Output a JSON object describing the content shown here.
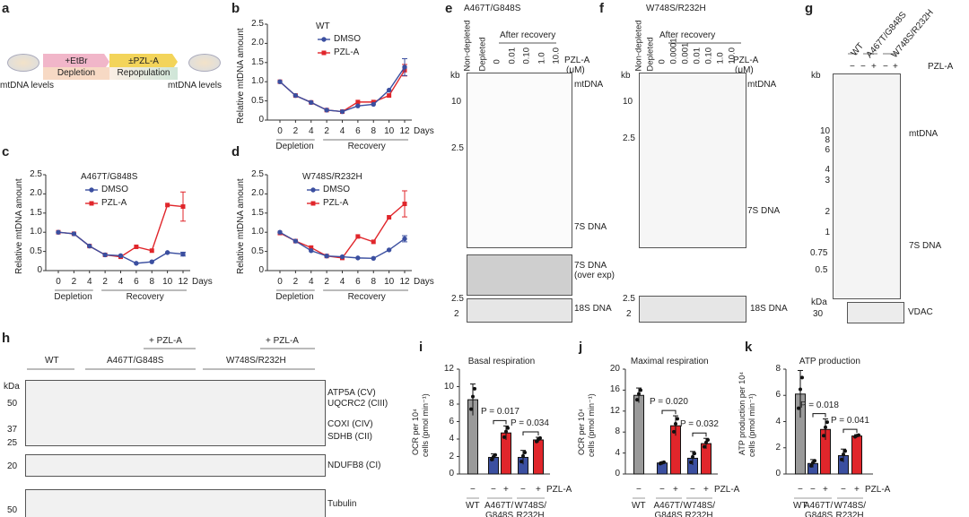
{
  "panel_letters": {
    "a": "a",
    "b": "b",
    "c": "c",
    "d": "d",
    "e": "e",
    "f": "f",
    "g": "g",
    "h": "h",
    "i": "i",
    "j": "j",
    "k": "k"
  },
  "schematic": {
    "etbr": "+EtBr",
    "pzla": "±PZL-A",
    "depletion": "Depletion",
    "repopulation": "Repopulation",
    "left_label": "mtDNA levels",
    "right_label": "mtDNA levels",
    "colors": {
      "etbr": "#f1b6c9",
      "pzla": "#f3d45a",
      "depletion": "#f7d9c4",
      "repopulation": "#cfe6d8"
    }
  },
  "common": {
    "ylabel": "Relative mtDNA amount",
    "days": "Days",
    "depletion": "Depletion",
    "recovery": "Recovery",
    "dmso": "DMSO",
    "pzla": "PZL-A"
  },
  "chart_data": [
    {
      "type": "line",
      "title": "WT",
      "ylabel": "Relative mtDNA amount",
      "xlabel": "Days",
      "x_tick_labels": [
        "0",
        "2",
        "4",
        "2",
        "4",
        "6",
        "8",
        "10",
        "12"
      ],
      "y_ticks": [
        "0",
        "0.5",
        "1.0",
        "1.5",
        "2.0",
        "2.5"
      ],
      "ylim": [
        0,
        2.5
      ],
      "series": [
        {
          "name": "DMSO",
          "color": "#3b4fa0",
          "values": [
            1.0,
            0.64,
            0.46,
            0.26,
            0.22,
            0.37,
            0.41,
            0.78,
            1.38
          ],
          "err_last": 0.22
        },
        {
          "name": "PZL-A",
          "color": "#e0262b",
          "values": [
            1.0,
            0.64,
            0.46,
            0.26,
            0.22,
            0.47,
            0.47,
            0.64,
            1.3
          ],
          "err_last": 0.15
        }
      ]
    },
    {
      "type": "line",
      "title": "A467T/G848S",
      "ylabel": "Relative mtDNA amount",
      "xlabel": "Days",
      "x_tick_labels": [
        "0",
        "2",
        "4",
        "2",
        "4",
        "6",
        "8",
        "10",
        "12"
      ],
      "y_ticks": [
        "0",
        "0.5",
        "1.0",
        "1.5",
        "2.0",
        "2.5"
      ],
      "ylim": [
        0,
        2.5
      ],
      "series": [
        {
          "name": "DMSO",
          "color": "#3b4fa0",
          "values": [
            1.0,
            0.96,
            0.64,
            0.41,
            0.39,
            0.19,
            0.23,
            0.47,
            0.43
          ],
          "err_last": 0.05
        },
        {
          "name": "PZL-A",
          "color": "#e0262b",
          "values": [
            1.0,
            0.96,
            0.64,
            0.41,
            0.36,
            0.62,
            0.52,
            1.71,
            1.67
          ],
          "err_last": 0.38
        }
      ]
    },
    {
      "type": "line",
      "title": "W748S/R232H",
      "ylabel": "Relative mtDNA amount",
      "xlabel": "Days",
      "x_tick_labels": [
        "0",
        "2",
        "4",
        "2",
        "4",
        "6",
        "8",
        "10",
        "12"
      ],
      "y_ticks": [
        "0",
        "0.5",
        "1.0",
        "1.5",
        "2.0",
        "2.5"
      ],
      "ylim": [
        0,
        2.5
      ],
      "series": [
        {
          "name": "DMSO",
          "color": "#3b4fa0",
          "values": [
            1.0,
            0.77,
            0.52,
            0.38,
            0.36,
            0.33,
            0.32,
            0.54,
            0.83
          ],
          "err_last": 0.08
        },
        {
          "name": "PZL-A",
          "color": "#e0262b",
          "values": [
            0.98,
            0.77,
            0.6,
            0.38,
            0.33,
            0.89,
            0.75,
            1.39,
            1.74
          ],
          "err_last": 0.34
        }
      ]
    },
    {
      "type": "bar",
      "title": "Basal respiration",
      "ylabel": "OCR per 10⁴ cells (pmol min⁻¹)",
      "y_ticks": [
        "0",
        "2",
        "4",
        "6",
        "8",
        "10",
        "12"
      ],
      "ylim": [
        0,
        12
      ],
      "categories": [
        "WT −",
        "A467T/G848S −",
        "A467T/G848S +",
        "W748S/R232H −",
        "W748S/R232H +"
      ],
      "values": [
        8.5,
        1.9,
        4.7,
        1.9,
        3.9
      ],
      "errors": [
        1.8,
        0.4,
        0.8,
        0.8,
        0.3
      ],
      "colors": [
        "#9a9a9a",
        "#3b4fa0",
        "#e0262b",
        "#3b4fa0",
        "#e0262b"
      ],
      "pvalues": [
        "P = 0.017",
        "P = 0.034"
      ]
    },
    {
      "type": "bar",
      "title": "Maximal respiration",
      "ylabel": "OCR per 10⁴ cells (pmol min⁻¹)",
      "y_ticks": [
        "0",
        "4",
        "8",
        "12",
        "16",
        "20"
      ],
      "ylim": [
        0,
        20
      ],
      "categories": [
        "WT −",
        "A467T/G848S −",
        "A467T/G848S +",
        "W748S/R232H −",
        "W748S/R232H +"
      ],
      "values": [
        15.0,
        2.1,
        9.2,
        3.0,
        5.8
      ],
      "errors": [
        1.4,
        0.2,
        1.9,
        1.3,
        1.0
      ],
      "colors": [
        "#9a9a9a",
        "#3b4fa0",
        "#e0262b",
        "#3b4fa0",
        "#e0262b"
      ],
      "pvalues": [
        "P = 0.020",
        "P = 0.032"
      ]
    },
    {
      "type": "bar",
      "title": "ATP production",
      "ylabel": "ATP production per 10⁴ cells (pmol min⁻¹)",
      "y_ticks": [
        "0",
        "2",
        "4",
        "6",
        "8"
      ],
      "ylim": [
        0,
        8
      ],
      "categories": [
        "WT −",
        "A467T/G848S −",
        "A467T/G848S +",
        "W748S/R232H −",
        "W748S/R232H +"
      ],
      "values": [
        6.1,
        0.8,
        3.4,
        1.4,
        2.9
      ],
      "errors": [
        1.8,
        0.3,
        0.8,
        0.5,
        0.1
      ],
      "colors": [
        "#9a9a9a",
        "#3b4fa0",
        "#e0262b",
        "#3b4fa0",
        "#e0262b"
      ],
      "pvalues": [
        "P = 0.018",
        "P = 0.041"
      ]
    }
  ],
  "bar_axis": {
    "minus": "−",
    "plus": "+",
    "pzla": "PZL-A",
    "wt": "WT",
    "g1a": "A467T/",
    "g1b": "G848S",
    "g2a": "W748S/",
    "g2b": "R232H"
  },
  "blot_e": {
    "title": "A467T/G848S",
    "after": "After recovery",
    "lanes": [
      "Non-depleted",
      "Depleted",
      "0",
      "0.01",
      "0.10",
      "1.0",
      "10.0"
    ],
    "pzla": "PZL-A",
    "unit": "(μM)",
    "kb": "kb",
    "m10": "10",
    "m25": "2.5",
    "mtdna": "mtDNA",
    "s7": "7S DNA",
    "s7over": "7S DNA",
    "overexp": "(over exp)",
    "s18": "18S DNA",
    "m25b": "2.5",
    "m2": "2"
  },
  "blot_f": {
    "title": "W748S/R232H",
    "after": "After recovery",
    "lanes": [
      "Non-depleted",
      "Depleted",
      "0",
      "0.0001",
      "0.001",
      "0.01",
      "0.10",
      "1.0",
      "10.0"
    ],
    "pzla": "PZL-A",
    "unit": "(μM)",
    "kb": "kb",
    "m10": "10",
    "m25": "2.5",
    "mtdna": "mtDNA",
    "s7": "7S DNA",
    "s18": "18S DNA",
    "m25b": "2.5",
    "m2": "2"
  },
  "blot_g": {
    "groups": [
      "WT",
      "A467T/G848S",
      "W748S/R232H"
    ],
    "signs": [
      "−",
      "−",
      "+",
      "−",
      "+"
    ],
    "pzla": "PZL-A",
    "kb": "kb",
    "markers": [
      "10",
      "8",
      "6",
      "4",
      "3",
      "2",
      "1",
      "0.75",
      "0.5"
    ],
    "mtdna": "mtDNA",
    "s7": "7S DNA",
    "kda": "kDa",
    "m30": "30",
    "vdac": "VDAC"
  },
  "blot_h": {
    "plus1": "+ PZL-A",
    "plus2": "+ PZL-A",
    "wt": "WT",
    "g1": "A467T/G848S",
    "g2": "W748S/R232H",
    "kda": "kDa",
    "m50": "50",
    "m37": "37",
    "m25": "25",
    "m20": "20",
    "m50b": "50",
    "bands": [
      "ATP5A (CV)",
      "UQCRC2 (CIII)",
      "COXI (CIV)",
      "SDHB (CII)",
      "NDUFB8 (CI)",
      "Tubulin"
    ]
  }
}
